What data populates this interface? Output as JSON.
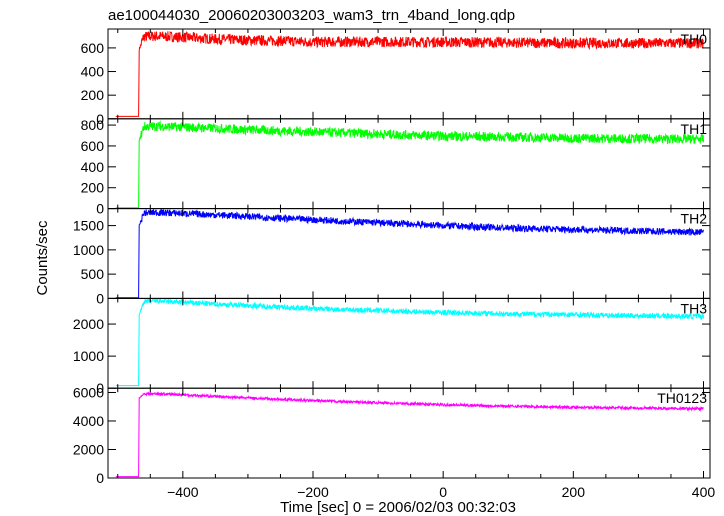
{
  "chart_data": {
    "type": "line",
    "title": "ae100044030_20060203003203_wam3_trn_4band_long.qdp",
    "xlabel": "Time [sec] 0 = 2006/02/03 00:32:03",
    "ylabel": "Counts/sec",
    "xlim": [
      -515,
      410
    ],
    "x_ticks": [
      -400,
      -200,
      0,
      200,
      400
    ],
    "x_tick_labels": [
      "−400",
      "−200",
      "0",
      "200",
      "400"
    ],
    "grid": false,
    "onset_time": -467,
    "series": [
      {
        "name": "TH0",
        "color": "#ff0000",
        "ylim": [
          0,
          760
        ],
        "yticks": [
          0,
          200,
          400,
          600
        ],
        "baseline": 20,
        "noise": 45,
        "x": [
          -467,
          -460,
          -440,
          -400,
          -350,
          -300,
          -250,
          -200,
          -100,
          0,
          100,
          200,
          300,
          400
        ],
        "y": [
          590,
          695,
          700,
          690,
          675,
          665,
          660,
          650,
          652,
          650,
          645,
          640,
          640,
          640
        ]
      },
      {
        "name": "TH1",
        "color": "#00ff00",
        "ylim": [
          0,
          860
        ],
        "yticks": [
          0,
          200,
          400,
          600,
          800
        ],
        "baseline": 8,
        "noise": 45,
        "x": [
          -467,
          -460,
          -440,
          -400,
          -350,
          -300,
          -250,
          -200,
          -100,
          0,
          100,
          200,
          300,
          400
        ],
        "y": [
          650,
          785,
          790,
          780,
          770,
          755,
          745,
          735,
          715,
          695,
          685,
          675,
          670,
          665
        ]
      },
      {
        "name": "TH2",
        "color": "#0000ff",
        "ylim": [
          0,
          1850
        ],
        "yticks": [
          0,
          500,
          1000,
          1500
        ],
        "baseline": 15,
        "noise": 70,
        "x": [
          -467,
          -460,
          -440,
          -400,
          -350,
          -300,
          -250,
          -200,
          -100,
          0,
          100,
          200,
          300,
          400
        ],
        "y": [
          1500,
          1760,
          1770,
          1750,
          1720,
          1690,
          1650,
          1620,
          1560,
          1500,
          1450,
          1420,
          1390,
          1360
        ]
      },
      {
        "name": "TH3",
        "color": "#00ffff",
        "ylim": [
          0,
          2800
        ],
        "yticks": [
          0,
          1000,
          2000
        ],
        "baseline": 80,
        "noise": 80,
        "x": [
          -467,
          -460,
          -440,
          -400,
          -350,
          -300,
          -250,
          -200,
          -100,
          0,
          100,
          200,
          300,
          400
        ],
        "y": [
          2300,
          2700,
          2720,
          2680,
          2620,
          2580,
          2530,
          2480,
          2420,
          2360,
          2320,
          2290,
          2260,
          2240
        ]
      },
      {
        "name": "TH0123",
        "color": "#ff00ff",
        "ylim": [
          0,
          6300
        ],
        "yticks": [
          0,
          2000,
          4000,
          6000
        ],
        "baseline": 100,
        "noise": 90,
        "x": [
          -467,
          -460,
          -440,
          -400,
          -350,
          -300,
          -250,
          -200,
          -100,
          0,
          100,
          200,
          300,
          400
        ],
        "y": [
          5600,
          5900,
          5910,
          5840,
          5720,
          5620,
          5520,
          5420,
          5280,
          5140,
          5040,
          4960,
          4900,
          4860
        ]
      }
    ]
  }
}
